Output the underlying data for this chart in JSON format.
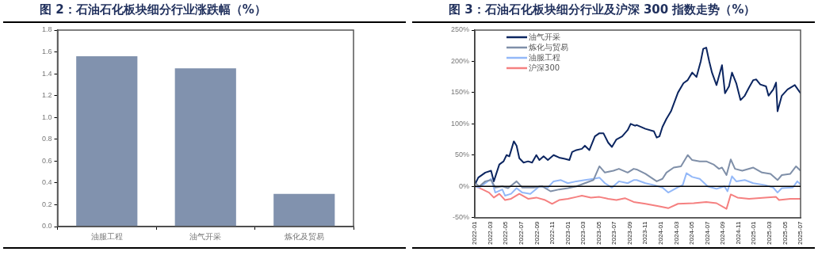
{
  "chart_data": [
    {
      "type": "bar",
      "title": "图 2：石油石化板块细分行业涨跌幅（%）",
      "categories": [
        "油服工程",
        "油气开采",
        "炼化及贸易"
      ],
      "values": [
        1.56,
        1.45,
        0.3
      ],
      "color": "#8192ae",
      "ylim": [
        0,
        1.8
      ],
      "yticks": [
        {
          "value": 0,
          "label": "0.0"
        },
        {
          "value": 0.2,
          "label": "0.2"
        },
        {
          "value": 0.4,
          "label": "0.4"
        },
        {
          "value": 0.6,
          "label": "0.6"
        },
        {
          "value": 0.8,
          "label": "0.8"
        },
        {
          "value": 1,
          "label": "1.0"
        },
        {
          "value": 1.2,
          "label": "1.2"
        },
        {
          "value": 1.4,
          "label": "1.4"
        },
        {
          "value": 1.6,
          "label": "1.6"
        },
        {
          "value": 1.8,
          "label": "1.8"
        }
      ],
      "grid": false,
      "legend": false
    },
    {
      "type": "line",
      "title": "图 3：石油石化板块细分行业及沪深 300 指数走势（%）",
      "xlim": [
        "2022-01",
        "2025-07"
      ],
      "xticks": [
        "2022-01",
        "2022-03",
        "2022-05",
        "2022-07",
        "2022-09",
        "2022-11",
        "2023-01",
        "2023-03",
        "2023-05",
        "2023-07",
        "2023-09",
        "2023-11",
        "2024-01",
        "2024-03",
        "2024-05",
        "2024-07",
        "2024-09",
        "2024-11",
        "2025-01",
        "2025-03",
        "2025-05",
        "2025-07"
      ],
      "ylim": [
        -50,
        250
      ],
      "yticks": [
        {
          "value": -50,
          "label": "-50%"
        },
        {
          "value": 0,
          "label": "0%"
        },
        {
          "value": 50,
          "label": "50%"
        },
        {
          "value": 100,
          "label": "100%"
        },
        {
          "value": 150,
          "label": "150%"
        },
        {
          "value": 200,
          "label": "200%"
        },
        {
          "value": 250,
          "label": "250%"
        }
      ],
      "grid": false,
      "legend": "top left",
      "marker": "none",
      "line_style": "solid",
      "ref_lines": [
        {
          "axis": "y",
          "value": 0,
          "color": "#000000"
        }
      ],
      "series": [
        {
          "name": "油气开采",
          "color": "#0b2560",
          "x": [
            "2022-01-04",
            "2022-01-15",
            "2022-02-12",
            "2022-03-04",
            "2022-03-15",
            "2022-04-06",
            "2022-04-23",
            "2022-05-04",
            "2022-05-15",
            "2022-06-02",
            "2022-06-13",
            "2022-06-24",
            "2022-07-10",
            "2022-07-28",
            "2022-08-13",
            "2022-08-30",
            "2022-09-11",
            "2022-09-28",
            "2022-10-14",
            "2022-11-06",
            "2022-11-28",
            "2022-12-20",
            "2023-01-07",
            "2023-01-18",
            "2023-02-04",
            "2023-02-26",
            "2023-03-07",
            "2023-03-25",
            "2023-04-16",
            "2023-05-03",
            "2023-05-19",
            "2023-06-07",
            "2023-06-22",
            "2023-07-09",
            "2023-08-01",
            "2023-08-23",
            "2023-09-04",
            "2023-09-21",
            "2023-09-28",
            "2023-11-01",
            "2023-12-04",
            "2023-12-15",
            "2023-12-26",
            "2024-01-07",
            "2024-01-23",
            "2024-02-10",
            "2024-03-07",
            "2024-03-29",
            "2024-04-15",
            "2024-05-02",
            "2024-05-19",
            "2024-06-05",
            "2024-06-15",
            "2024-06-27",
            "2024-07-08",
            "2024-07-19",
            "2024-08-06",
            "2024-08-28",
            "2024-09-09",
            "2024-09-25",
            "2024-10-06",
            "2024-10-23",
            "2024-11-09",
            "2024-11-26",
            "2024-12-12",
            "2024-12-29",
            "2025-01-10",
            "2025-01-26",
            "2025-02-18",
            "2025-02-28",
            "2025-03-16",
            "2025-03-27",
            "2025-04-02",
            "2025-04-19",
            "2025-05-11",
            "2025-06-09",
            "2025-07-01"
          ],
          "values": [
            5,
            14,
            22,
            25,
            8,
            35,
            40,
            50,
            48,
            72,
            65,
            45,
            38,
            40,
            38,
            50,
            42,
            48,
            42,
            50,
            46,
            44,
            42,
            55,
            58,
            60,
            65,
            58,
            80,
            85,
            85,
            70,
            63,
            75,
            80,
            90,
            100,
            97,
            98,
            92,
            88,
            78,
            80,
            95,
            108,
            120,
            150,
            165,
            170,
            182,
            175,
            200,
            220,
            222,
            200,
            182,
            162,
            194,
            149,
            160,
            182,
            165,
            138,
            145,
            158,
            170,
            171,
            163,
            160,
            145,
            155,
            166,
            120,
            145,
            155,
            162,
            149
          ]
        },
        {
          "name": "炼化与贸易",
          "color": "#7f8fa8",
          "x": [
            "2022-01-03",
            "2022-01-19",
            "2022-02-12",
            "2022-03-04",
            "2022-03-21",
            "2022-04-18",
            "2022-05-10",
            "2022-06-13",
            "2022-07-05",
            "2022-08-19",
            "2022-09-22",
            "2022-10-25",
            "2022-11-28",
            "2023-01-01",
            "2023-02-04",
            "2023-03-07",
            "2023-04-10",
            "2023-05-03",
            "2023-05-25",
            "2023-06-28",
            "2023-07-19",
            "2023-08-23",
            "2023-09-16",
            "2023-09-28",
            "2023-11-01",
            "2023-12-15",
            "2024-01-07",
            "2024-01-23",
            "2024-02-21",
            "2024-03-19",
            "2024-04-15",
            "2024-05-02",
            "2024-06-01",
            "2024-06-27",
            "2024-07-25",
            "2024-08-16",
            "2024-08-28",
            "2024-09-15",
            "2024-10-01",
            "2024-10-18",
            "2024-11-16",
            "2024-12-29",
            "2025-02-02",
            "2025-03-05",
            "2025-04-02",
            "2025-04-19",
            "2025-05-22",
            "2025-06-14",
            "2025-07-01"
          ],
          "values": [
            5,
            0,
            8,
            10,
            -2,
            0,
            -3,
            8,
            -2,
            -2,
            0,
            -8,
            -5,
            -3,
            0,
            5,
            10,
            32,
            22,
            25,
            28,
            22,
            28,
            27,
            20,
            8,
            12,
            22,
            30,
            32,
            50,
            42,
            40,
            40,
            35,
            28,
            30,
            18,
            43,
            28,
            25,
            30,
            22,
            20,
            10,
            18,
            20,
            32,
            25
          ]
        },
        {
          "name": "油服工程",
          "color": "#93b8f8",
          "x": [
            "2022-01-03",
            "2022-01-19",
            "2022-02-12",
            "2022-03-04",
            "2022-03-21",
            "2022-04-18",
            "2022-04-29",
            "2022-05-22",
            "2022-06-13",
            "2022-07-05",
            "2022-08-06",
            "2022-09-11",
            "2022-10-14",
            "2022-11-06",
            "2022-12-04",
            "2023-01-01",
            "2023-02-04",
            "2023-03-07",
            "2023-04-10",
            "2023-05-03",
            "2023-05-25",
            "2023-06-22",
            "2023-07-19",
            "2023-08-23",
            "2023-09-16",
            "2023-09-28",
            "2023-11-01",
            "2023-12-04",
            "2024-01-07",
            "2024-01-30",
            "2024-03-04",
            "2024-03-26",
            "2024-04-10",
            "2024-05-02",
            "2024-06-01",
            "2024-07-02",
            "2024-08-06",
            "2024-09-07",
            "2024-09-19",
            "2024-10-06",
            "2024-10-23",
            "2024-11-26",
            "2024-12-29",
            "2025-02-14",
            "2025-03-16",
            "2025-04-02",
            "2025-04-19",
            "2025-06-01",
            "2025-06-19",
            "2025-07-01"
          ],
          "values": [
            0,
            -2,
            5,
            12,
            -10,
            -5,
            -15,
            -12,
            -3,
            -10,
            -12,
            0,
            -2,
            8,
            10,
            5,
            8,
            10,
            12,
            14,
            5,
            -2,
            8,
            5,
            10,
            10,
            5,
            2,
            -2,
            -10,
            -2,
            2,
            21,
            15,
            12,
            0,
            -4,
            0,
            -8,
            16,
            8,
            10,
            5,
            2,
            -2,
            -10,
            -3,
            -2,
            8,
            3
          ]
        },
        {
          "name": "沪深300",
          "color": "#f58080",
          "x": [
            "2022-01-03",
            "2022-02-01",
            "2022-02-27",
            "2022-03-15",
            "2022-04-06",
            "2022-04-29",
            "2022-05-22",
            "2022-06-24",
            "2022-07-28",
            "2022-08-30",
            "2022-10-03",
            "2022-10-31",
            "2022-11-28",
            "2023-01-01",
            "2023-02-04",
            "2023-02-26",
            "2023-03-31",
            "2023-05-03",
            "2023-06-07",
            "2023-07-09",
            "2023-08-12",
            "2023-09-16",
            "2023-11-01",
            "2023-12-26",
            "2024-01-30",
            "2024-03-07",
            "2024-05-08",
            "2024-06-27",
            "2024-08-06",
            "2024-09-15",
            "2024-10-01",
            "2024-10-28",
            "2024-12-12",
            "2025-02-14",
            "2025-03-27",
            "2025-04-08",
            "2025-05-22",
            "2025-07-01"
          ],
          "values": [
            0,
            -5,
            -10,
            -18,
            -12,
            -22,
            -20,
            -12,
            -20,
            -18,
            -22,
            -28,
            -22,
            -20,
            -17,
            -15,
            -18,
            -17,
            -20,
            -22,
            -19,
            -25,
            -28,
            -32,
            -35,
            -28,
            -27,
            -25,
            -27,
            -36,
            -13,
            -18,
            -20,
            -18,
            -17,
            -22,
            -20,
            -20
          ]
        }
      ]
    }
  ]
}
